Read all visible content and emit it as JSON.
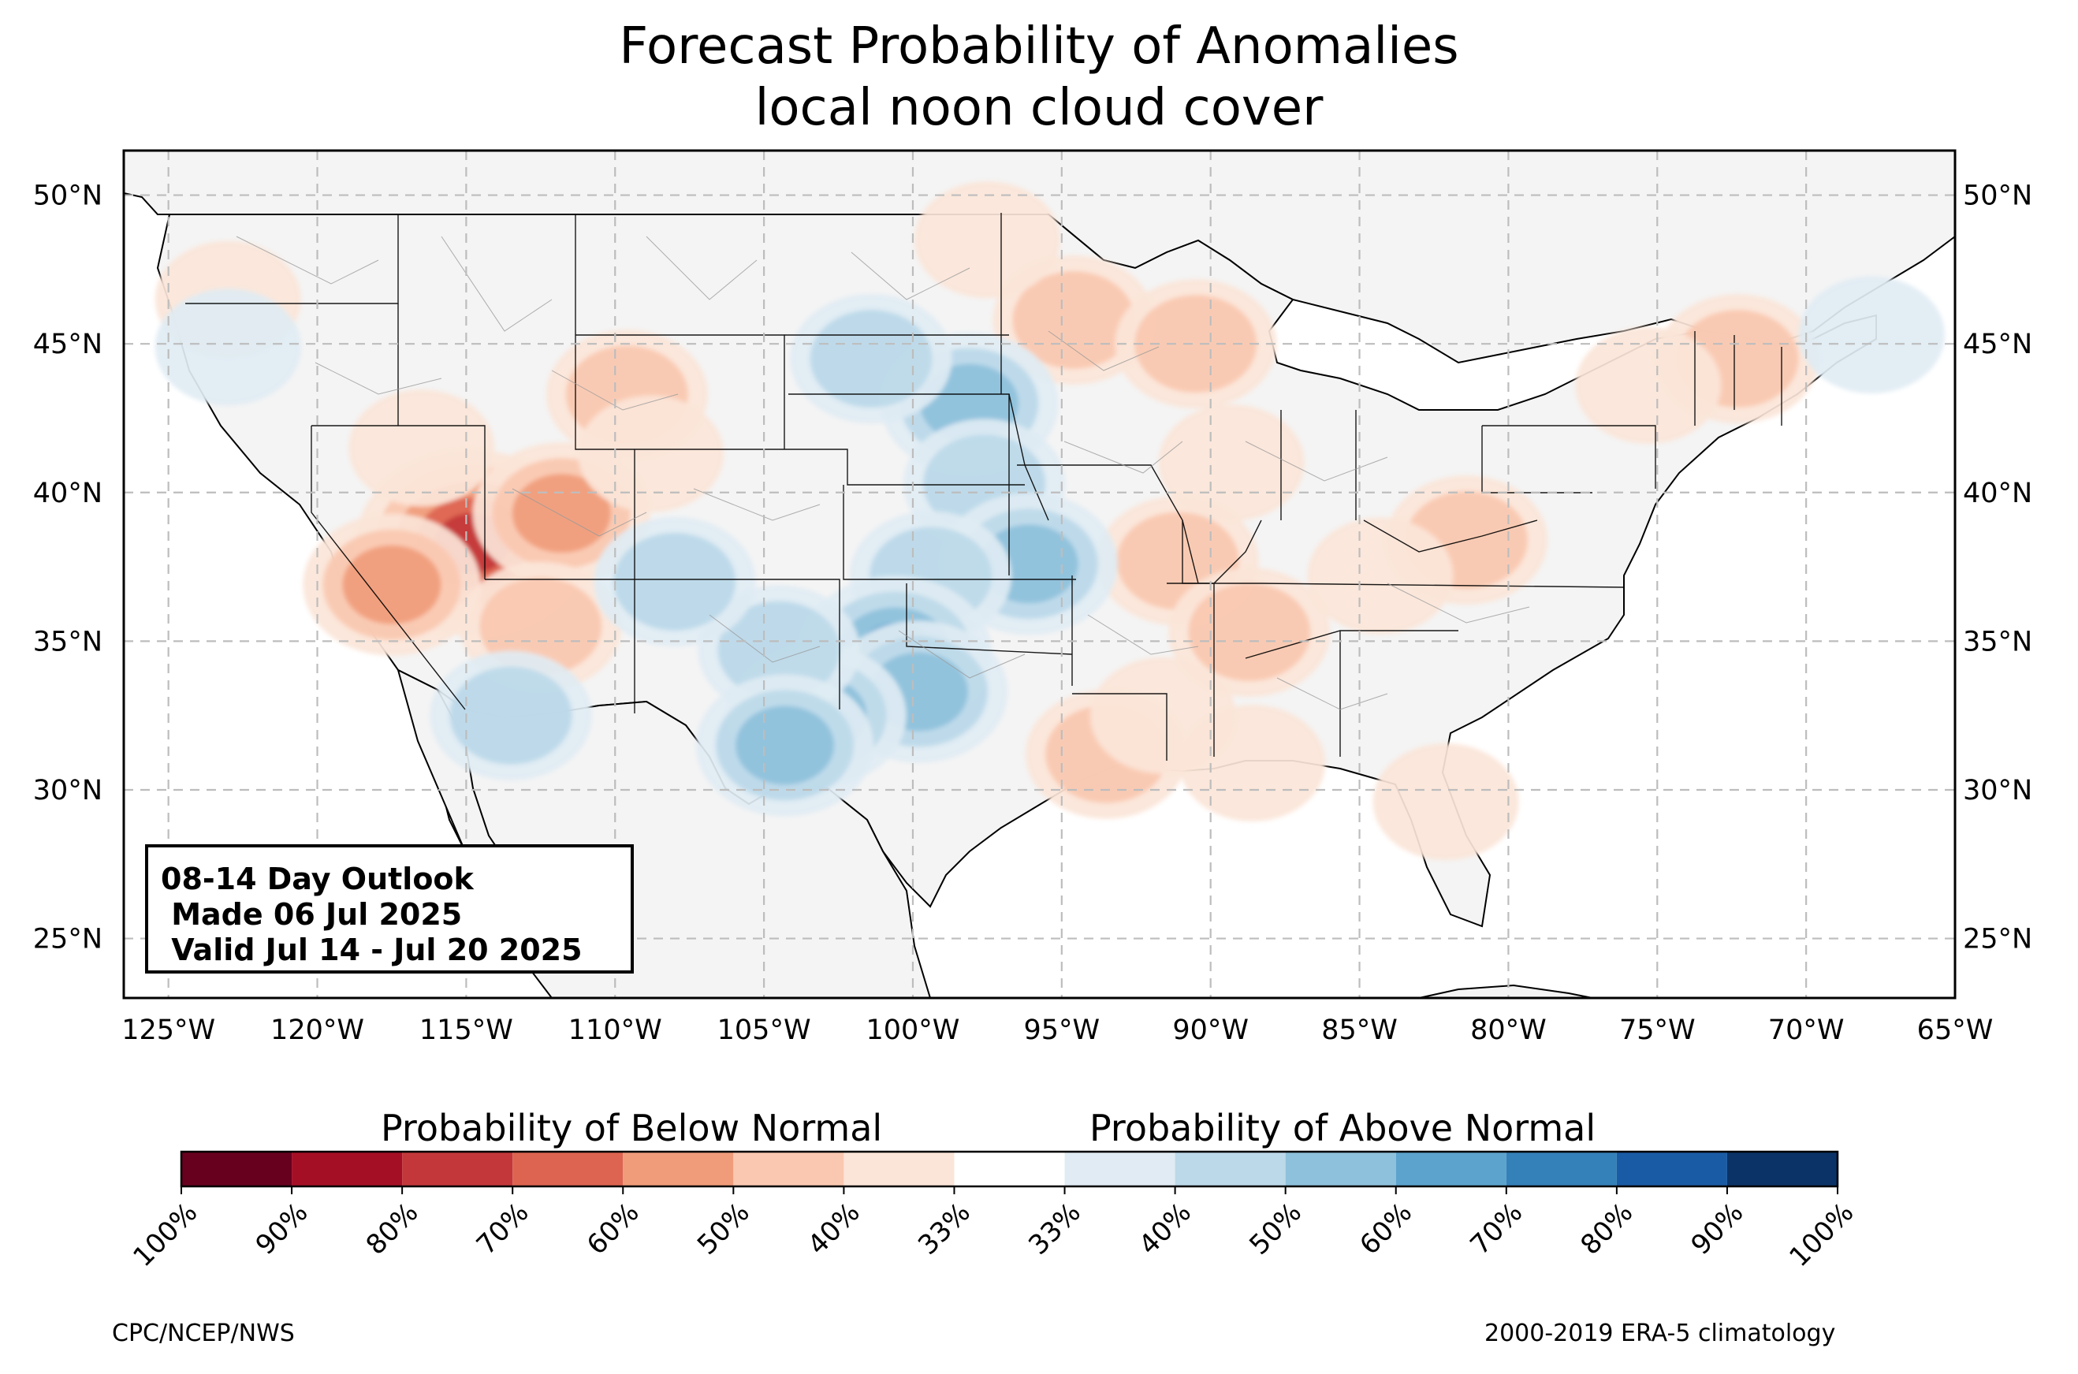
{
  "title": [
    "Forecast Probability of Anomalies",
    "local noon cloud cover"
  ],
  "map": {
    "region": "CONUS",
    "lon_range": [
      -126.5,
      -65
    ],
    "lat_range": [
      23,
      51.5
    ],
    "lat_ticks": [
      "50°N",
      "45°N",
      "40°N",
      "35°N",
      "30°N",
      "25°N"
    ],
    "lat_values": [
      50,
      45,
      40,
      35,
      30,
      25
    ],
    "lon_ticks": [
      "125°W",
      "120°W",
      "115°W",
      "110°W",
      "105°W",
      "100°W",
      "95°W",
      "90°W",
      "85°W",
      "80°W",
      "75°W",
      "70°W",
      "65°W"
    ],
    "lon_values": [
      -125,
      -120,
      -115,
      -110,
      -105,
      -100,
      -95,
      -90,
      -85,
      -80,
      -75,
      -70,
      -65
    ],
    "gridlines": "dashed",
    "land_color": "#f4f4f4",
    "ocean_color": "#ffffff"
  },
  "outlook": {
    "line1": "08-14 Day Outlook",
    "line2": " Made 06 Jul 2025",
    "line3": " Valid Jul 14 - Jul 20 2025"
  },
  "colorbar": {
    "below_label": "Probability of Below Normal",
    "above_label": "Probability of Above Normal",
    "tick_labels": [
      "100%",
      "90%",
      "80%",
      "70%",
      "60%",
      "50%",
      "40%",
      "33%",
      "33%",
      "40%",
      "50%",
      "60%",
      "70%",
      "80%",
      "90%",
      "100%"
    ],
    "colors": [
      "#67001f",
      "#a50f26",
      "#c3373a",
      "#dd6450",
      "#f09c7b",
      "#fac8b0",
      "#fbe5d8",
      "#ffffff",
      "#e0ebf3",
      "#bcd9e9",
      "#8ec1db",
      "#5ca3cd",
      "#3480b9",
      "#1a5ba5",
      "#0b3367"
    ]
  },
  "footer": {
    "left": "CPC/NCEP/NWS",
    "right": "2000-2019 ERA-5 climatology"
  },
  "anomalies": {
    "below_normal": [
      {
        "lon": -114.5,
        "lat": 38.5,
        "level": 4
      },
      {
        "lon": -114.8,
        "lat": 38.3,
        "level": 5
      },
      {
        "lon": -111.8,
        "lat": 39.3,
        "level": 3
      },
      {
        "lon": -117.5,
        "lat": 36.9,
        "level": 3
      },
      {
        "lon": -116.5,
        "lat": 41.5,
        "level": 1
      },
      {
        "lon": -112.5,
        "lat": 35.5,
        "level": 2
      },
      {
        "lon": -109.6,
        "lat": 43.3,
        "level": 2
      },
      {
        "lon": -108.8,
        "lat": 41.3,
        "level": 1
      },
      {
        "lon": -94.6,
        "lat": 45.8,
        "level": 2
      },
      {
        "lon": -90.5,
        "lat": 45.0,
        "level": 2
      },
      {
        "lon": -89.3,
        "lat": 41.0,
        "level": 1
      },
      {
        "lon": -91.1,
        "lat": 37.7,
        "level": 2
      },
      {
        "lon": -88.7,
        "lat": 35.3,
        "level": 2
      },
      {
        "lon": -81.4,
        "lat": 38.4,
        "level": 2
      },
      {
        "lon": -84.3,
        "lat": 37.2,
        "level": 1
      },
      {
        "lon": -72.3,
        "lat": 44.5,
        "level": 2
      },
      {
        "lon": -75.3,
        "lat": 43.6,
        "level": 1
      },
      {
        "lon": -93.5,
        "lat": 31.2,
        "level": 2
      },
      {
        "lon": -91.6,
        "lat": 32.5,
        "level": 1
      },
      {
        "lon": -88.6,
        "lat": 30.9,
        "level": 1
      },
      {
        "lon": -82.1,
        "lat": 29.6,
        "level": 1
      },
      {
        "lon": -97.5,
        "lat": 48.5,
        "level": 1
      },
      {
        "lon": -123.0,
        "lat": 46.5,
        "level": 1
      }
    ],
    "above_normal": [
      {
        "lon": -98.1,
        "lat": 43.0,
        "level": 3
      },
      {
        "lon": -97.6,
        "lat": 40.3,
        "level": 2
      },
      {
        "lon": -96.1,
        "lat": 37.6,
        "level": 3
      },
      {
        "lon": -99.4,
        "lat": 37.2,
        "level": 2
      },
      {
        "lon": -100.6,
        "lat": 34.6,
        "level": 4
      },
      {
        "lon": -99.8,
        "lat": 33.3,
        "level": 3
      },
      {
        "lon": -103.2,
        "lat": 32.5,
        "level": 3
      },
      {
        "lon": -104.5,
        "lat": 34.7,
        "level": 2
      },
      {
        "lon": -108.0,
        "lat": 37.0,
        "level": 2
      },
      {
        "lon": -104.3,
        "lat": 31.5,
        "level": 3
      },
      {
        "lon": -101.4,
        "lat": 44.5,
        "level": 2
      },
      {
        "lon": -113.5,
        "lat": 32.5,
        "level": 2
      },
      {
        "lon": -123.0,
        "lat": 44.9,
        "level": 1
      },
      {
        "lon": -67.8,
        "lat": 45.3,
        "level": 1
      }
    ]
  }
}
